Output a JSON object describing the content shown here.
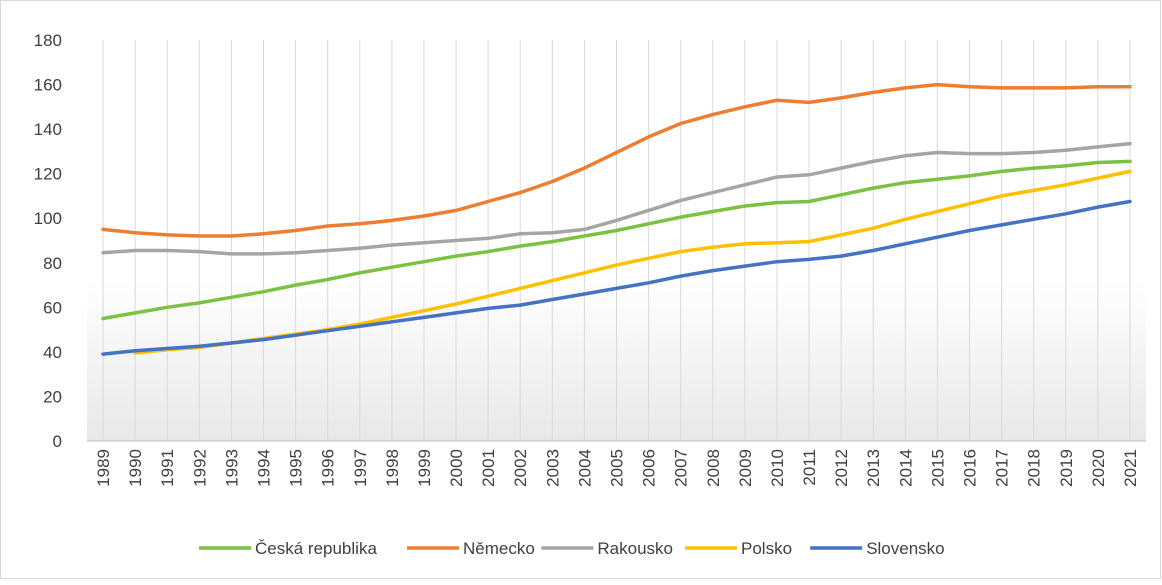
{
  "chart_data": {
    "type": "line",
    "categories": [
      "1989",
      "1990",
      "1991",
      "1992",
      "1993",
      "1994",
      "1995",
      "1996",
      "1997",
      "1998",
      "1999",
      "2000",
      "2001",
      "2002",
      "2003",
      "2004",
      "2005",
      "2006",
      "2007",
      "2008",
      "2009",
      "2010",
      "2011",
      "2012",
      "2013",
      "2014",
      "2015",
      "2016",
      "2017",
      "2018",
      "2019",
      "2020",
      "2021"
    ],
    "series": [
      {
        "name": "Česká republika",
        "color": "#7cc142",
        "values": [
          55,
          57.5,
          60,
          62,
          64.5,
          67,
          70,
          72.5,
          75.5,
          78,
          80.5,
          83,
          85,
          87.5,
          89.5,
          92,
          94.5,
          97.5,
          100.5,
          103,
          105.5,
          107,
          107.5,
          110.5,
          113.5,
          116,
          117.5,
          119,
          121,
          122.5,
          123.5,
          125,
          125.5
        ]
      },
      {
        "name": "Německo",
        "color": "#ed7d31",
        "values": [
          95,
          93.5,
          92.5,
          92,
          92,
          93,
          94.5,
          96.5,
          97.5,
          99,
          101,
          103.5,
          107.5,
          111.5,
          116.5,
          122.5,
          129.5,
          136.5,
          142.5,
          146.5,
          150,
          153,
          152,
          154,
          156.5,
          158.5,
          160,
          159,
          158.5,
          158.5,
          158.5,
          159,
          159
        ]
      },
      {
        "name": "Rakousko",
        "color": "#a5a5a5",
        "values": [
          84.5,
          85.5,
          85.5,
          85,
          84,
          84,
          84.5,
          85.5,
          86.5,
          88,
          89,
          90,
          91,
          93,
          93.5,
          95,
          99,
          103.5,
          108,
          111.5,
          115,
          118.5,
          119.5,
          122.5,
          125.5,
          128,
          129.5,
          129,
          129,
          129.5,
          130.5,
          132,
          133.5
        ]
      },
      {
        "name": "Polsko",
        "color": "#ffc000",
        "values": [
          null,
          39.5,
          41,
          42,
          44,
          46,
          48,
          50,
          52.5,
          55.5,
          58.5,
          61.5,
          65,
          68.5,
          72,
          75.5,
          79,
          82,
          85,
          87,
          88.5,
          89,
          89.5,
          92.5,
          95.5,
          99.5,
          103,
          106.5,
          110,
          112.5,
          115,
          118,
          121
        ]
      },
      {
        "name": "Slovensko",
        "color": "#4472c4",
        "values": [
          39,
          40.5,
          41.5,
          42.5,
          44,
          45.5,
          47.5,
          49.5,
          51.5,
          53.5,
          55.5,
          57.5,
          59.5,
          61,
          63.5,
          66,
          68.5,
          71,
          74,
          76.5,
          78.5,
          80.5,
          81.5,
          83,
          85.5,
          88.5,
          91.5,
          94.5,
          97,
          99.5,
          102,
          105,
          107.5
        ]
      }
    ],
    "ylim": [
      0,
      180
    ],
    "yticks": [
      0,
      20,
      40,
      60,
      80,
      100,
      120,
      140,
      160,
      180
    ],
    "grid": "x",
    "legend": "bottom"
  }
}
